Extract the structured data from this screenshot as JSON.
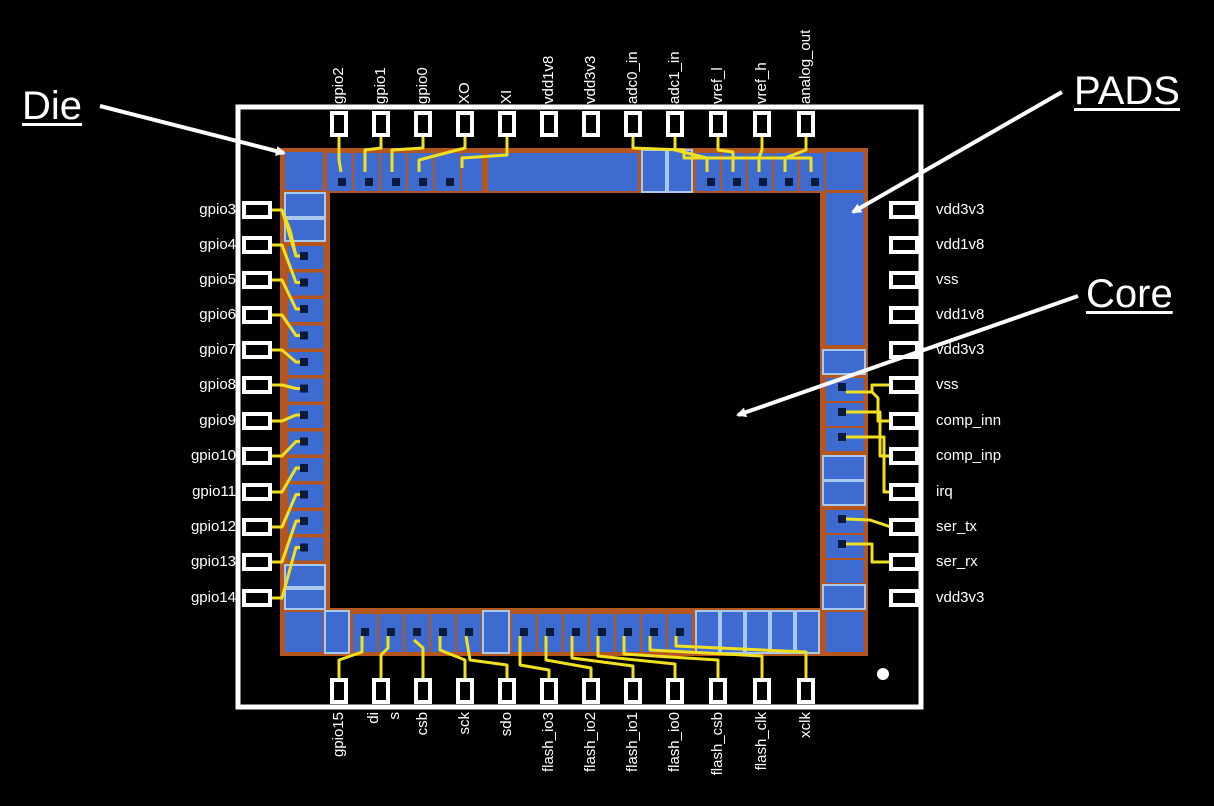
{
  "callouts": {
    "die": "Die",
    "pads": "PADS",
    "core": "Core"
  },
  "pins": {
    "top": [
      "gpio2",
      "gpio1",
      "gpio0",
      "XO",
      "XI",
      "vdd1v8",
      "vdd3v3",
      "adc0_in",
      "adc1_in",
      "vref_l",
      "vref_h",
      "analog_out"
    ],
    "left": [
      "gpio3",
      "gpio4",
      "gpio5",
      "gpio6",
      "gpio7",
      "gpio8",
      "gpio9",
      "gpio10",
      "gpio11",
      "gpio12",
      "gpio13",
      "gpio14"
    ],
    "right": [
      "vdd3v3",
      "vdd1v8",
      "vss",
      "vdd1v8",
      "vdd3v3",
      "vss",
      "comp_inn",
      "comp_inp",
      "irq",
      "ser_tx",
      "ser_rx",
      "vdd3v3"
    ],
    "bottom": [
      "gpio15",
      "di",
      "s",
      "csb",
      "sck",
      "sdo",
      "flash_io3",
      "flash_io2",
      "flash_io1",
      "flash_io0",
      "flash_csb",
      "flash_clk",
      "xclk"
    ]
  },
  "colors": {
    "background": "#000000",
    "outline": "#ffffff",
    "ring": "#b5561e",
    "pad": "#3d6bd0",
    "pad_light": "#a8c8ec",
    "wire": "#f0e020",
    "core": "#000000"
  }
}
